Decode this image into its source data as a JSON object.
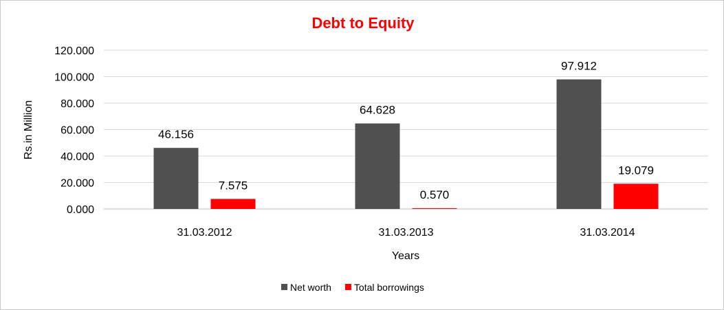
{
  "chart_data": {
    "type": "bar",
    "title": "Debt to Equity",
    "xlabel": "Years",
    "ylabel": "Rs.in Million",
    "categories": [
      "31.03.2012",
      "31.03.2013",
      "31.03.2014"
    ],
    "series": [
      {
        "name": "Net worth",
        "values": [
          46.156,
          64.628,
          97.912
        ],
        "labels": [
          "46.156",
          "64.628",
          "97.912"
        ],
        "color": "#505050"
      },
      {
        "name": "Total borrowings",
        "values": [
          7.575,
          0.57,
          19.079
        ],
        "labels": [
          "7.575",
          "0.570",
          "19.079"
        ],
        "color": "#ff0000"
      }
    ],
    "ylim": [
      0,
      120
    ],
    "yticks": [
      0,
      20,
      40,
      60,
      80,
      100,
      120
    ],
    "ytick_labels": [
      "0.000",
      "20.000",
      "40.000",
      "60.000",
      "80.000",
      "100.000",
      "120.000"
    ],
    "grid": true,
    "legend_position": "bottom",
    "colors": {
      "title": "#ff0000",
      "gridline": "#d9d9d9",
      "axis": "#bfbfbf"
    }
  }
}
